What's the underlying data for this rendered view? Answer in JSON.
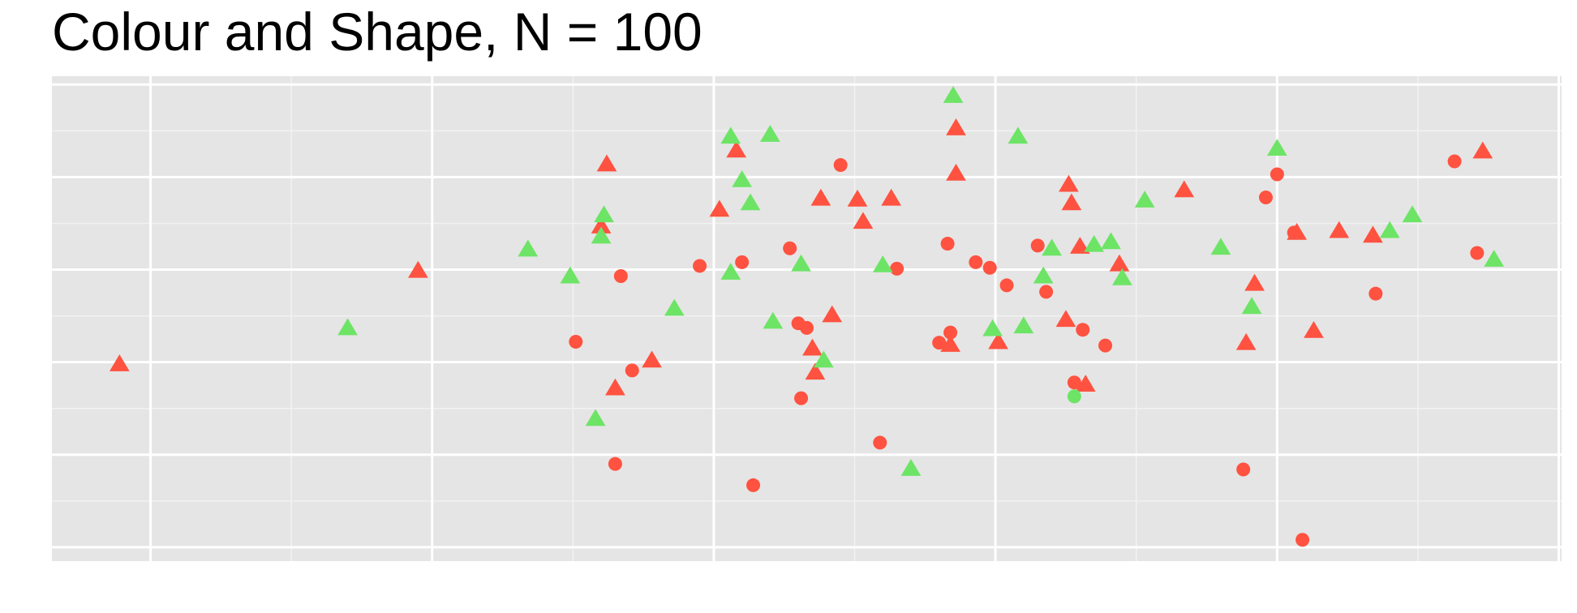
{
  "chart_data": {
    "type": "scatter",
    "title": "Colour and Shape, N = 100",
    "xlim": [
      -2.35,
      3.01
    ],
    "ylim": [
      -2.15,
      3.09
    ],
    "xticks": [
      -2,
      -1,
      0,
      1,
      2,
      3
    ],
    "yticks": [
      -2,
      -1,
      0,
      1,
      2,
      3
    ],
    "grid": true,
    "series": [
      {
        "color": "#ff5240",
        "shape": "triangle",
        "x": [
          -2.11,
          -1.05,
          -0.38,
          -0.4,
          -0.35,
          -0.22,
          0.02,
          0.08,
          0.38,
          0.51,
          0.53,
          0.63,
          0.35,
          0.36,
          0.42,
          0.86,
          0.86,
          0.84,
          1.01,
          1.26,
          1.27,
          1.3,
          1.25,
          1.32,
          1.44,
          1.67,
          1.92,
          1.89,
          2.07,
          2.13,
          2.22,
          2.34,
          2.73
        ],
        "values": [
          -0.03,
          0.98,
          2.13,
          1.46,
          -0.29,
          0.01,
          1.64,
          2.28,
          1.76,
          1.75,
          1.51,
          1.76,
          0.14,
          -0.12,
          0.5,
          2.52,
          2.03,
          0.18,
          0.21,
          1.91,
          1.71,
          1.24,
          0.45,
          -0.25,
          1.05,
          1.85,
          0.84,
          0.2,
          1.39,
          0.33,
          1.41,
          1.36,
          2.27
        ]
      },
      {
        "color": "#ff5240",
        "shape": "circle",
        "x": [
          -0.33,
          -0.49,
          -0.29,
          -0.35,
          -0.05,
          0.1,
          0.14,
          0.27,
          0.3,
          0.33,
          0.31,
          0.45,
          0.59,
          0.65,
          0.83,
          0.84,
          0.8,
          0.93,
          0.98,
          1.04,
          1.15,
          1.18,
          1.31,
          1.39,
          1.28,
          1.88,
          1.96,
          2.0,
          2.06,
          2.09,
          2.35,
          2.63,
          2.71
        ],
        "values": [
          0.93,
          0.22,
          -0.09,
          -1.1,
          1.04,
          1.08,
          -1.33,
          1.23,
          0.42,
          0.37,
          -0.39,
          2.13,
          -0.87,
          1.01,
          1.28,
          0.32,
          0.21,
          1.08,
          1.02,
          0.83,
          1.26,
          0.76,
          0.35,
          0.18,
          -0.22,
          -1.16,
          1.78,
          2.03,
          1.4,
          -1.92,
          0.74,
          2.17,
          1.18
        ]
      },
      {
        "color": "#6de466",
        "shape": "triangle",
        "x": [
          0.85,
          0.06,
          0.2,
          0.1,
          0.13,
          -0.39,
          -0.4,
          -0.66,
          -0.51,
          -1.3,
          -0.14,
          0.06,
          0.31,
          0.21,
          0.39,
          0.6,
          0.7,
          1.08,
          1.53,
          1.2,
          1.17,
          1.35,
          1.41,
          1.45,
          0.99,
          1.1,
          1.8,
          1.91,
          2.0,
          2.4,
          2.48,
          2.77,
          -0.42
        ],
        "values": [
          2.87,
          2.43,
          2.45,
          1.96,
          1.71,
          1.58,
          1.35,
          1.21,
          0.92,
          0.36,
          0.57,
          0.96,
          1.05,
          0.43,
          0.01,
          1.04,
          -1.16,
          2.43,
          1.74,
          1.22,
          0.92,
          1.26,
          1.29,
          0.9,
          0.35,
          0.38,
          1.23,
          0.59,
          2.3,
          1.41,
          1.58,
          1.1,
          -0.62
        ]
      },
      {
        "color": "#6de466",
        "shape": "circle",
        "x": [
          1.28
        ],
        "values": [
          -0.37
        ]
      }
    ]
  }
}
